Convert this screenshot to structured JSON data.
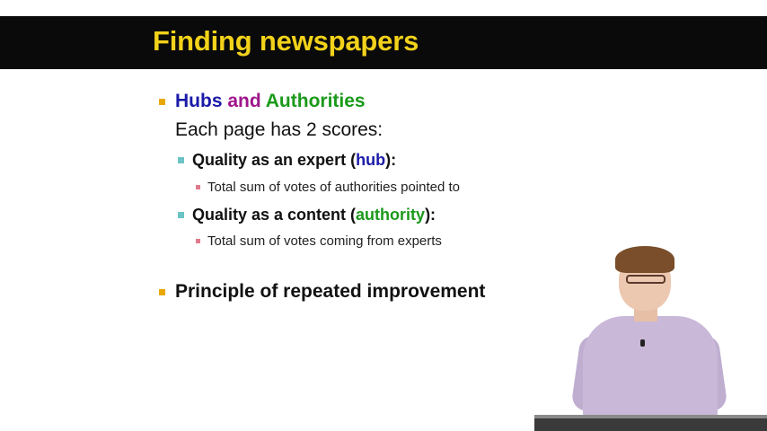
{
  "slide": {
    "title": "Finding newspapers",
    "bullet1": {
      "hubs": "Hubs",
      "and": "and",
      "authorities": "Authorities",
      "subline": "Each page has 2 scores:"
    },
    "sub1": {
      "prefix": "Quality as an expert (",
      "highlight": "hub",
      "suffix": "):",
      "detail": "Total sum of votes of authorities pointed to"
    },
    "sub2": {
      "prefix": "Quality as a content (",
      "highlight": "authority",
      "suffix": "):",
      "detail": "Total sum of votes coming from experts"
    },
    "bullet2": "Principle of repeated improvement"
  },
  "colors": {
    "title_bar": "#0a0a0a",
    "title_text": "#f2d21a",
    "hub_blue": "#1a1aa8",
    "and_magenta": "#a0168c",
    "authority_green": "#1a9a1a"
  }
}
